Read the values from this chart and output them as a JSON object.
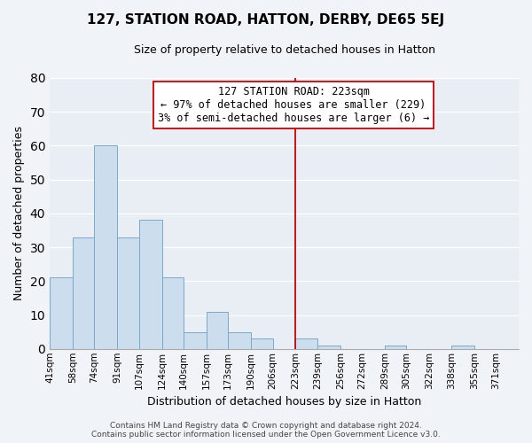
{
  "title": "127, STATION ROAD, HATTON, DERBY, DE65 5EJ",
  "subtitle": "Size of property relative to detached houses in Hatton",
  "xlabel": "Distribution of detached houses by size in Hatton",
  "ylabel": "Number of detached properties",
  "bar_edges": [
    41,
    58,
    74,
    91,
    107,
    124,
    140,
    157,
    173,
    190,
    206,
    223,
    239,
    256,
    272,
    289,
    305,
    322,
    338,
    355,
    371
  ],
  "bar_heights": [
    21,
    33,
    60,
    33,
    38,
    21,
    5,
    11,
    5,
    3,
    0,
    3,
    1,
    0,
    0,
    1,
    0,
    0,
    1,
    0,
    0
  ],
  "bar_color": "#ccdded",
  "bar_edgecolor": "#7aaac8",
  "vline_x": 223,
  "vline_color": "#cc0000",
  "annotation_title": "127 STATION ROAD: 223sqm",
  "annotation_line1": "← 97% of detached houses are smaller (229)",
  "annotation_line2": "3% of semi-detached houses are larger (6) →",
  "ylim": [
    0,
    80
  ],
  "yticks": [
    0,
    10,
    20,
    30,
    40,
    50,
    60,
    70,
    80
  ],
  "tick_labels": [
    "41sqm",
    "58sqm",
    "74sqm",
    "91sqm",
    "107sqm",
    "124sqm",
    "140sqm",
    "157sqm",
    "173sqm",
    "190sqm",
    "206sqm",
    "223sqm",
    "239sqm",
    "256sqm",
    "272sqm",
    "289sqm",
    "305sqm",
    "322sqm",
    "338sqm",
    "355sqm",
    "371sqm"
  ],
  "footer_line1": "Contains HM Land Registry data © Crown copyright and database right 2024.",
  "footer_line2": "Contains public sector information licensed under the Open Government Licence v3.0.",
  "background_color": "#f0f4f8",
  "plot_bg_color": "#e8eef4",
  "grid_color": "#ffffff",
  "title_fontsize": 11,
  "subtitle_fontsize": 9,
  "ylabel_fontsize": 9,
  "xlabel_fontsize": 9,
  "tick_fontsize": 7.5,
  "footer_fontsize": 6.5
}
